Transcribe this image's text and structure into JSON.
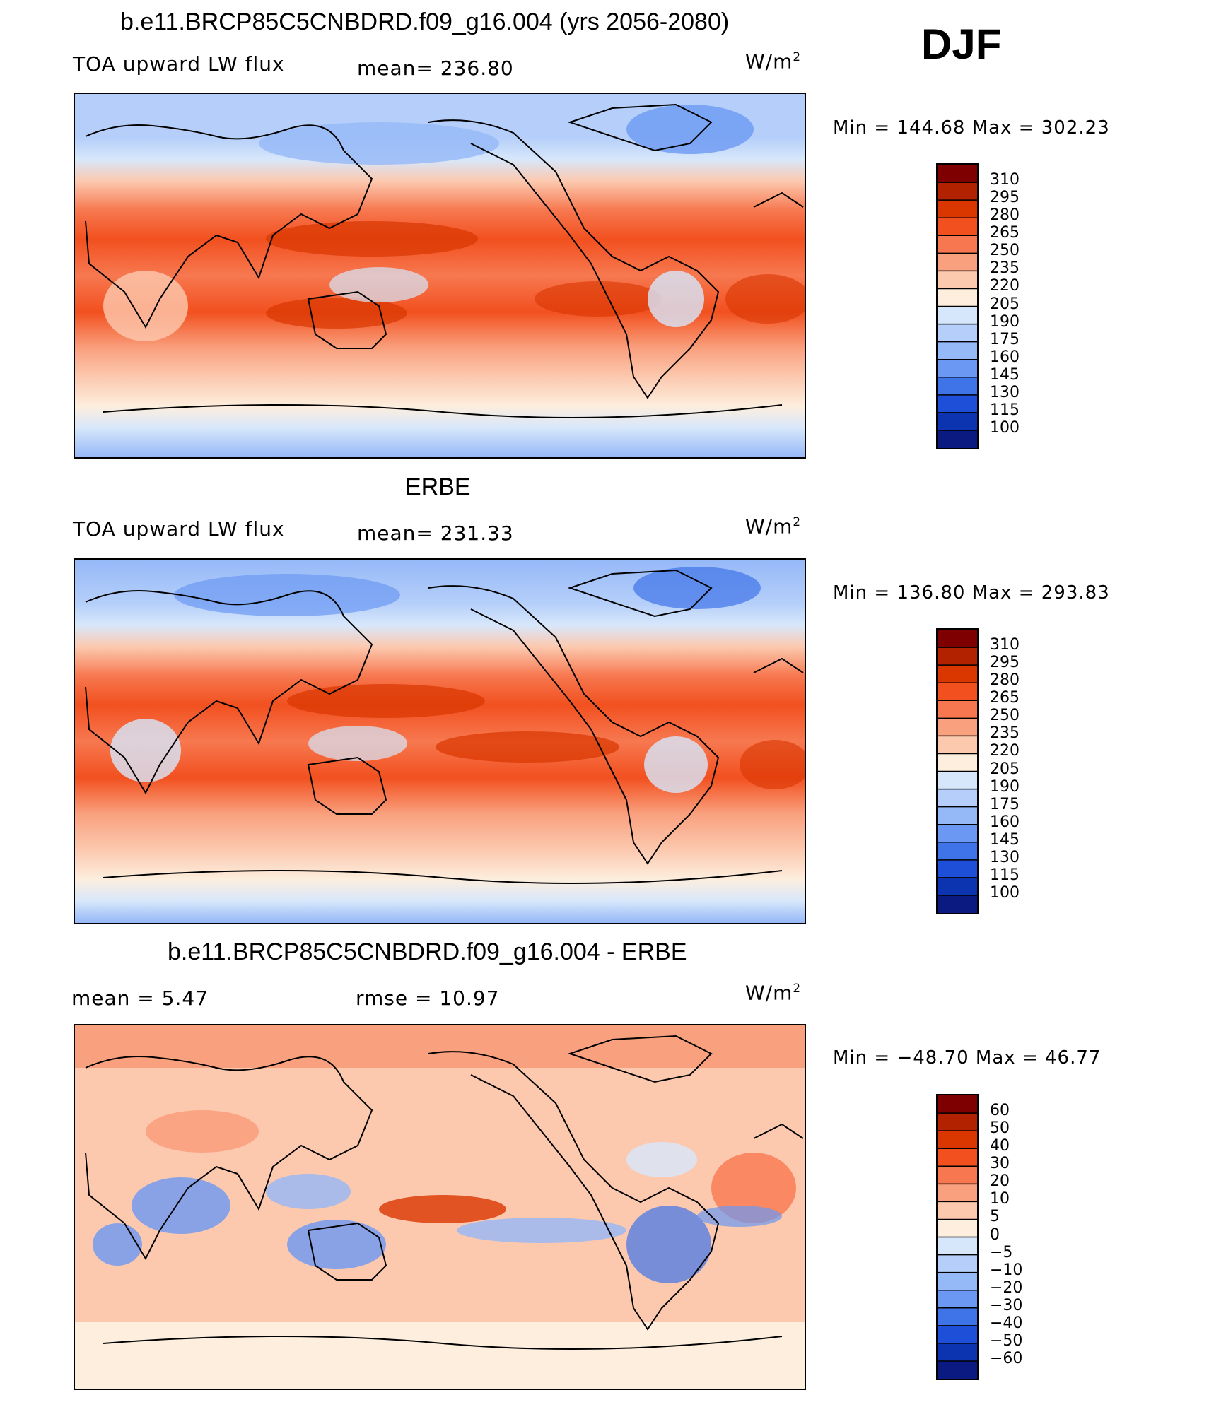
{
  "season": "DJF",
  "panels": [
    {
      "title": "b.e11.BRCP85C5CNBDRD.f09_g16.004 (yrs 2056-2080)",
      "left_label": "TOA upward LW flux",
      "center_label": "mean=  236.80",
      "units": "W/m",
      "units_sup": "2",
      "minmax": "Min  =  144.68  Max  =  302.23",
      "colorbar": {
        "levels": [
          "310",
          "295",
          "280",
          "265",
          "250",
          "235",
          "220",
          "205",
          "190",
          "175",
          "160",
          "145",
          "130",
          "115",
          "100"
        ],
        "colors": [
          "#7f0000",
          "#b22200",
          "#d93600",
          "#f2501f",
          "#f77850",
          "#f9a07e",
          "#fcc9af",
          "#fdeede",
          "#d7e7fb",
          "#b5cffa",
          "#95b8f7",
          "#6b98f2",
          "#3f73e8",
          "#1d4fd8",
          "#0d34b0",
          "#0a1a80"
        ]
      }
    },
    {
      "title": "ERBE",
      "left_label": "TOA upward LW flux",
      "center_label": "mean=  231.33",
      "units": "W/m",
      "units_sup": "2",
      "minmax": "Min  =  136.80  Max  =  293.83",
      "colorbar": {
        "levels": [
          "310",
          "295",
          "280",
          "265",
          "250",
          "235",
          "220",
          "205",
          "190",
          "175",
          "160",
          "145",
          "130",
          "115",
          "100"
        ],
        "colors": [
          "#7f0000",
          "#b22200",
          "#d93600",
          "#f2501f",
          "#f77850",
          "#f9a07e",
          "#fcc9af",
          "#fdeede",
          "#d7e7fb",
          "#b5cffa",
          "#95b8f7",
          "#6b98f2",
          "#3f73e8",
          "#1d4fd8",
          "#0d34b0",
          "#0a1a80"
        ]
      }
    },
    {
      "title": "b.e11.BRCP85C5CNBDRD.f09_g16.004 - ERBE",
      "left_label": "mean  =      5.47",
      "center_label": "rmse  =    10.97",
      "units": "W/m",
      "units_sup": "2",
      "minmax": "Min  =  −48.70  Max  =    46.77",
      "colorbar": {
        "levels": [
          "60",
          "50",
          "40",
          "30",
          "20",
          "10",
          "5",
          "0",
          "−5",
          "−10",
          "−20",
          "−30",
          "−40",
          "−50",
          "−60"
        ],
        "colors": [
          "#7f0000",
          "#b22200",
          "#d93600",
          "#f2501f",
          "#f77850",
          "#f9a07e",
          "#fcc9af",
          "#fdeede",
          "#d7e7fb",
          "#b5cffa",
          "#95b8f7",
          "#6b98f2",
          "#3f73e8",
          "#1d4fd8",
          "#0d34b0",
          "#0a1a80"
        ]
      }
    }
  ]
}
